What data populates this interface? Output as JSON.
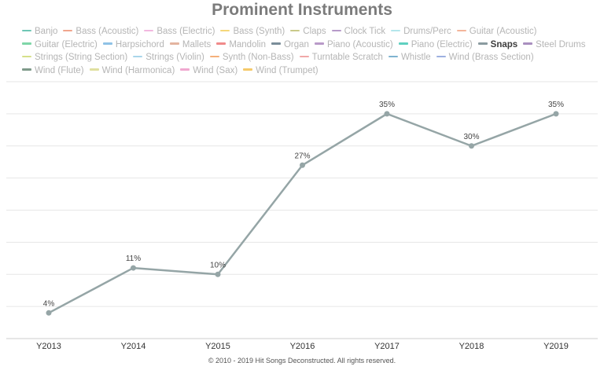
{
  "chart_data": {
    "type": "line",
    "title": "Prominent Instruments",
    "categories": [
      "Y2013",
      "Y2014",
      "Y2015",
      "Y2016",
      "Y2017",
      "Y2018",
      "Y2019"
    ],
    "series": [
      {
        "name": "Snaps",
        "values": [
          4,
          11,
          10,
          27,
          35,
          30,
          35
        ],
        "labels": [
          "4%",
          "11%",
          "10%",
          "27%",
          "35%",
          "30%",
          "35%"
        ],
        "color": "#95a5a6"
      }
    ],
    "ylim": [
      0,
      40
    ],
    "grid": true,
    "legend_position": "top",
    "legend": [
      {
        "label": "Banjo",
        "color": "#6fc7b5",
        "active": false
      },
      {
        "label": "Bass (Acoustic)",
        "color": "#f0a58d",
        "active": false
      },
      {
        "label": "Bass (Electric)",
        "color": "#f2b8e0",
        "active": false
      },
      {
        "label": "Bass (Synth)",
        "color": "#f5d77a",
        "active": false
      },
      {
        "label": "Claps",
        "color": "#c9c98a",
        "active": false
      },
      {
        "label": "Clock Tick",
        "color": "#b79ac9",
        "active": false
      },
      {
        "label": "Drums/Perc",
        "color": "#b4e6ec",
        "active": false
      },
      {
        "label": "Guitar (Acoustic)",
        "color": "#f4b59a",
        "active": false
      },
      {
        "label": "Guitar (Electric)",
        "color": "#7fd6a8",
        "active": false
      },
      {
        "label": "Harpsichord",
        "color": "#8fc2e6",
        "active": false
      },
      {
        "label": "Mallets",
        "color": "#e3b4a0",
        "active": false
      },
      {
        "label": "Mandolin",
        "color": "#f08a8a",
        "active": false
      },
      {
        "label": "Organ",
        "color": "#7a8d99",
        "active": false
      },
      {
        "label": "Piano (Acoustic)",
        "color": "#b99ac8",
        "active": false
      },
      {
        "label": "Piano (Electric)",
        "color": "#5fd0c0",
        "active": false
      },
      {
        "label": "Snaps",
        "color": "#8a9ba0",
        "active": true
      },
      {
        "label": "Steel Drums",
        "color": "#a98fbf",
        "active": false
      },
      {
        "label": "Strings (String Section)",
        "color": "#d6e08a",
        "active": false
      },
      {
        "label": "Strings (Violin)",
        "color": "#a9d6ea",
        "active": false
      },
      {
        "label": "Synth (Non-Bass)",
        "color": "#f5b07a",
        "active": false
      },
      {
        "label": "Turntable Scratch",
        "color": "#f0a8a8",
        "active": false
      },
      {
        "label": "Whistle",
        "color": "#7fb3d0",
        "active": false
      },
      {
        "label": "Wind (Brass Section)",
        "color": "#9db0e0",
        "active": false
      },
      {
        "label": "Wind (Flute)",
        "color": "#7f9a8a",
        "active": false
      },
      {
        "label": "Wind (Harmonica)",
        "color": "#e0e0a0",
        "active": false
      },
      {
        "label": "Wind (Sax)",
        "color": "#f0a8d0",
        "active": false
      },
      {
        "label": "Wind (Trumpet)",
        "color": "#f5c96a",
        "active": false
      }
    ]
  },
  "footer": "© 2010 - 2019 Hit Songs Deconstructed. All rights reserved."
}
